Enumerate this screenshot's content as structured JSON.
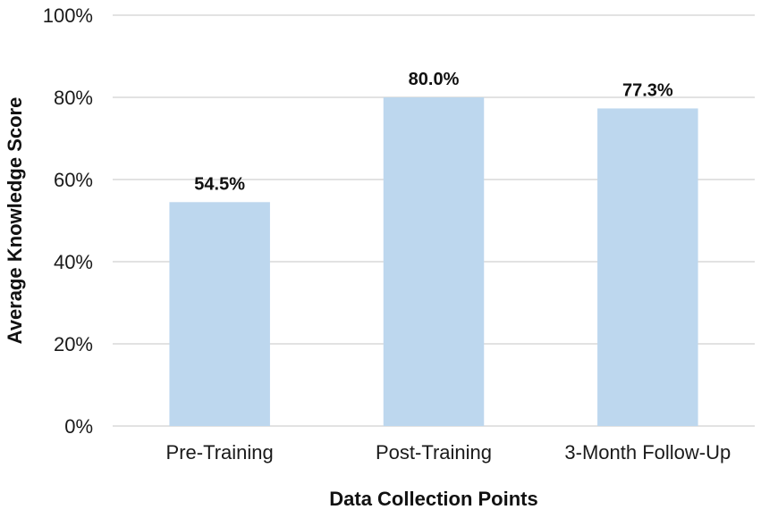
{
  "chart_data": {
    "type": "bar",
    "title": "",
    "xlabel": "Data Collection Points",
    "ylabel": "Average Knowledge Score",
    "categories": [
      "Pre-Training",
      "Post-Training",
      "3-Month Follow-Up"
    ],
    "values": [
      54.5,
      80.0,
      77.3
    ],
    "data_labels": [
      "54.5%",
      "80.0%",
      "77.3%"
    ],
    "ylim": [
      0,
      100
    ],
    "yticks": [
      0,
      20,
      40,
      60,
      80,
      100
    ],
    "ytick_labels": [
      "0%",
      "20%",
      "40%",
      "60%",
      "80%",
      "100%"
    ],
    "grid": true,
    "legend": "none",
    "bar_color": "#bdd7ee"
  }
}
